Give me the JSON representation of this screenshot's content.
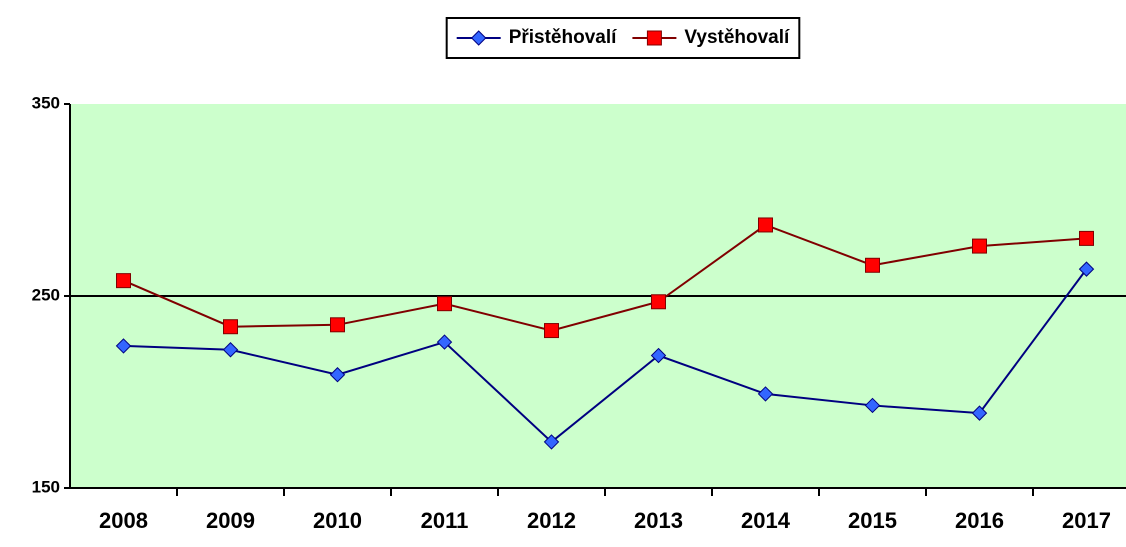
{
  "chart_data": {
    "type": "line",
    "categories": [
      "2008",
      "2009",
      "2010",
      "2011",
      "2012",
      "2013",
      "2014",
      "2015",
      "2016",
      "2017"
    ],
    "series": [
      {
        "name": "Přistěhovalí",
        "color": "#000080",
        "marker_color": "#3366ff",
        "marker": "diamond",
        "values": [
          224,
          222,
          209,
          226,
          174,
          219,
          199,
          193,
          189,
          264
        ]
      },
      {
        "name": "Vystěhovalí",
        "color": "#800000",
        "marker_color": "#ff0000",
        "marker": "square",
        "values": [
          258,
          234,
          235,
          246,
          232,
          247,
          287,
          266,
          276,
          280
        ]
      }
    ],
    "ylim": [
      150,
      350
    ],
    "yticks": [
      150,
      250,
      350
    ],
    "grid": true,
    "legend": "top",
    "plot_background": "#ccffcc"
  }
}
